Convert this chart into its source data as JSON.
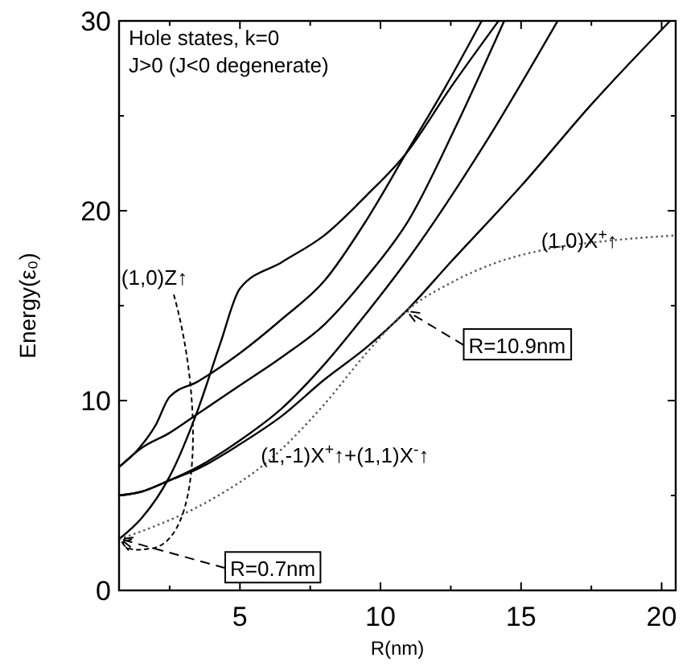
{
  "chart_data": {
    "type": "line",
    "xlabel": "R(nm)",
    "ylabel": "Energy(ε₀)",
    "xlim": [
      0.7,
      20.5
    ],
    "ylim": [
      0,
      30
    ],
    "xticks": [
      {
        "value": 2.5,
        "label": null
      },
      5,
      {
        "value": 7.5,
        "label": null
      },
      10,
      {
        "value": 12.5,
        "label": null
      },
      15,
      {
        "value": 17.5,
        "label": null
      },
      20
    ],
    "yticks": [
      0,
      {
        "value": 5,
        "label": null
      },
      10,
      {
        "value": 15,
        "label": null
      },
      20,
      {
        "value": 25,
        "label": null
      },
      30
    ],
    "grid": false,
    "annotations": [
      "Hole states, k=0",
      "J>0 (J<0 degenerate)",
      {
        "text": "(1,0)Z↑",
        "x": 0.7,
        "y": 2.7
      },
      {
        "text": "R=0.7nm",
        "x": 0.7,
        "y": 2.7
      },
      {
        "text": "R=10.9nm",
        "x": 10.9,
        "y": 14.7
      },
      {
        "text": "(1,-1)X$^{+}$↑+(1,1)X$^{-}$↑",
        "x": 7,
        "y": 8
      },
      {
        "text": "(1,0)X$^{+}$↑",
        "x": 18,
        "y": 18.4
      }
    ],
    "series": [
      {
        "color": "#000000",
        "line_style": "solid",
        "x": [
          0.7,
          1.5,
          2.5,
          3.5,
          4.3,
          5,
          6.5,
          8,
          9.5,
          10.9,
          12.5,
          14.2
        ],
        "values": [
          2.7,
          3.8,
          6,
          9.5,
          13,
          15.9,
          17.3,
          18.7,
          20.8,
          23,
          26.5,
          30
        ]
      },
      {
        "color": "#000000",
        "line_style": "solid",
        "x": [
          0.7,
          1.3,
          2,
          2.5,
          3.5,
          5,
          6.5,
          8,
          9.5,
          10.9,
          12.3,
          13.6
        ],
        "values": [
          6.5,
          7.3,
          8.7,
          10.2,
          11,
          12.5,
          14.3,
          16.3,
          19.5,
          23,
          26.5,
          30
        ]
      },
      {
        "color": "#000000",
        "line_style": "solid",
        "x": [
          0.7,
          1.5,
          2.5,
          3.5,
          5,
          6.5,
          8,
          9.5,
          11,
          12.7,
          14.4
        ],
        "values": [
          6.5,
          7.5,
          8.3,
          9.3,
          10.8,
          12.3,
          14,
          16.5,
          19.5,
          24.5,
          30
        ]
      },
      {
        "color": "#000000",
        "line_style": "solid",
        "x": [
          0.7,
          1.5,
          2.5,
          3.5,
          5,
          6.5,
          8,
          9.5,
          11,
          13.7,
          16.3
        ],
        "values": [
          5,
          5.2,
          5.8,
          6.5,
          7.9,
          9.6,
          11.9,
          14.6,
          17.5,
          23.5,
          30
        ]
      },
      {
        "color": "#000000",
        "line_style": "solid",
        "x": [
          0.7,
          1.5,
          2.5,
          3.5,
          5,
          6.5,
          8,
          9.5,
          10.9,
          12.5,
          15,
          17.5,
          20.3
        ],
        "values": [
          5,
          5.2,
          5.8,
          6.4,
          7.7,
          9.2,
          11.1,
          12.8,
          14.7,
          17.3,
          21.3,
          25.6,
          30
        ]
      },
      {
        "color": "#555555",
        "line_style": "dotted",
        "x": [
          0.7,
          2,
          4,
          6,
          8,
          9.5,
          10.9,
          12.5,
          14,
          16,
          18,
          20.5
        ],
        "values": [
          2.7,
          3.4,
          4.8,
          6.8,
          9.8,
          12.5,
          14.7,
          16.2,
          17.2,
          18,
          18.4,
          18.7
        ]
      }
    ]
  }
}
